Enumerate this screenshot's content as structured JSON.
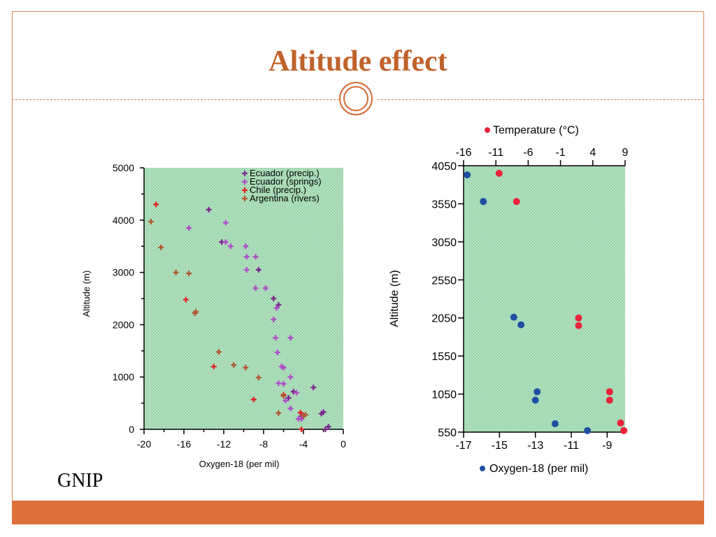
{
  "slide": {
    "title": "Altitude effect",
    "source": "GNIP",
    "colors": {
      "accent": "#c0622b",
      "footer": "#dd6f3b",
      "frame": "#d9875a"
    }
  },
  "chart_data": [
    {
      "type": "scatter",
      "xlabel": "Oxygen-18 (per mil)",
      "ylabel": "Altitude (m)",
      "xlim": [
        -20,
        0
      ],
      "ylim": [
        0,
        5000
      ],
      "xticks": [
        "-20",
        "-16",
        "-12",
        "-8",
        "-4",
        "0"
      ],
      "yticks": [
        "0",
        "1000",
        "2000",
        "3000",
        "4000",
        "5000"
      ],
      "legend_position": "top-right",
      "series": [
        {
          "name": "Ecuador (precip.)",
          "color": "#7a2a8c",
          "points": [
            [
              -13.5,
              4200
            ],
            [
              -12.2,
              3580
            ],
            [
              -8.5,
              3050
            ],
            [
              -7,
              2500
            ],
            [
              -6.5,
              2380
            ],
            [
              -3,
              800
            ],
            [
              -5,
              720
            ],
            [
              -5.5,
              600
            ],
            [
              -2.2,
              300
            ],
            [
              -2,
              330
            ],
            [
              -1.5,
              50
            ],
            [
              -1.8,
              0
            ],
            [
              -4.2,
              250
            ]
          ]
        },
        {
          "name": "Ecuador (springs)",
          "color": "#b04fc8",
          "points": [
            [
              -15.5,
              3850
            ],
            [
              -11.8,
              3950
            ],
            [
              -11.8,
              3580
            ],
            [
              -11.3,
              3500
            ],
            [
              -9.8,
              3500
            ],
            [
              -9.7,
              3300
            ],
            [
              -8.8,
              3300
            ],
            [
              -9.7,
              3050
            ],
            [
              -8.8,
              2700
            ],
            [
              -7.8,
              2700
            ],
            [
              -6.7,
              2320
            ],
            [
              -7,
              2100
            ],
            [
              -6.8,
              1750
            ],
            [
              -5.3,
              1750
            ],
            [
              -6.6,
              1470
            ],
            [
              -6.2,
              1200
            ],
            [
              -6,
              1180
            ],
            [
              -5.3,
              1000
            ],
            [
              -6.5,
              880
            ],
            [
              -6,
              870
            ],
            [
              -5.3,
              400
            ],
            [
              -4.5,
              200
            ],
            [
              -4.2,
              200
            ],
            [
              -4.7,
              700
            ],
            [
              -5.8,
              550
            ]
          ]
        },
        {
          "name": "Chile (precip.)",
          "color": "#e02626",
          "points": [
            [
              -18.8,
              4300
            ],
            [
              -15.8,
              2480
            ],
            [
              -13,
              1200
            ],
            [
              -9,
              570
            ],
            [
              -6,
              660
            ],
            [
              -4.3,
              320
            ],
            [
              -4.2,
              0
            ]
          ]
        },
        {
          "name": "Argentina (rivers)",
          "color": "#b35a32",
          "points": [
            [
              -19.3,
              3970
            ],
            [
              -18.3,
              3480
            ],
            [
              -16.8,
              3000
            ],
            [
              -15.5,
              2980
            ],
            [
              -14.9,
              2220
            ],
            [
              -14.8,
              2250
            ],
            [
              -12.5,
              1480
            ],
            [
              -11,
              1230
            ],
            [
              -9.8,
              1180
            ],
            [
              -8.5,
              990
            ],
            [
              -6,
              640
            ],
            [
              -6.5,
              310
            ],
            [
              -4,
              260
            ],
            [
              -3.8,
              280
            ]
          ]
        }
      ]
    },
    {
      "type": "scatter",
      "ylabel": "Altitude (m)",
      "ylim": [
        550,
        4050
      ],
      "yticks": [
        "550",
        "1050",
        "1550",
        "2050",
        "2550",
        "3050",
        "3550",
        "4050"
      ],
      "x_bottom": {
        "label": "Oxygen-18 (per mil)",
        "lim": [
          -17,
          -8
        ],
        "ticks": [
          "-17",
          "-15",
          "-13",
          "-11",
          "-9"
        ]
      },
      "x_top": {
        "label": "Temperature (°C)",
        "lim": [
          -16,
          9
        ],
        "ticks": [
          "-16",
          "-11",
          "-6",
          "-1",
          "4",
          "9"
        ]
      },
      "series": [
        {
          "name": "Temperature (°C)",
          "color": "#e8233a",
          "axis": "top",
          "points": [
            [
              -10.5,
              3950
            ],
            [
              -7.8,
              3580
            ],
            [
              1.8,
              2050
            ],
            [
              1.8,
              1950
            ],
            [
              6.6,
              1080
            ],
            [
              6.6,
              970
            ],
            [
              8.3,
              670
            ],
            [
              8.8,
              570
            ]
          ]
        },
        {
          "name": "Oxygen-18 (per mil)",
          "color": "#1f4fa3",
          "axis": "bottom",
          "points": [
            [
              -16.8,
              3930
            ],
            [
              -15.9,
              3580
            ],
            [
              -14.2,
              2060
            ],
            [
              -13.8,
              1960
            ],
            [
              -12.9,
              1080
            ],
            [
              -13,
              970
            ],
            [
              -11.9,
              660
            ],
            [
              -10.1,
              570
            ]
          ]
        }
      ]
    }
  ]
}
